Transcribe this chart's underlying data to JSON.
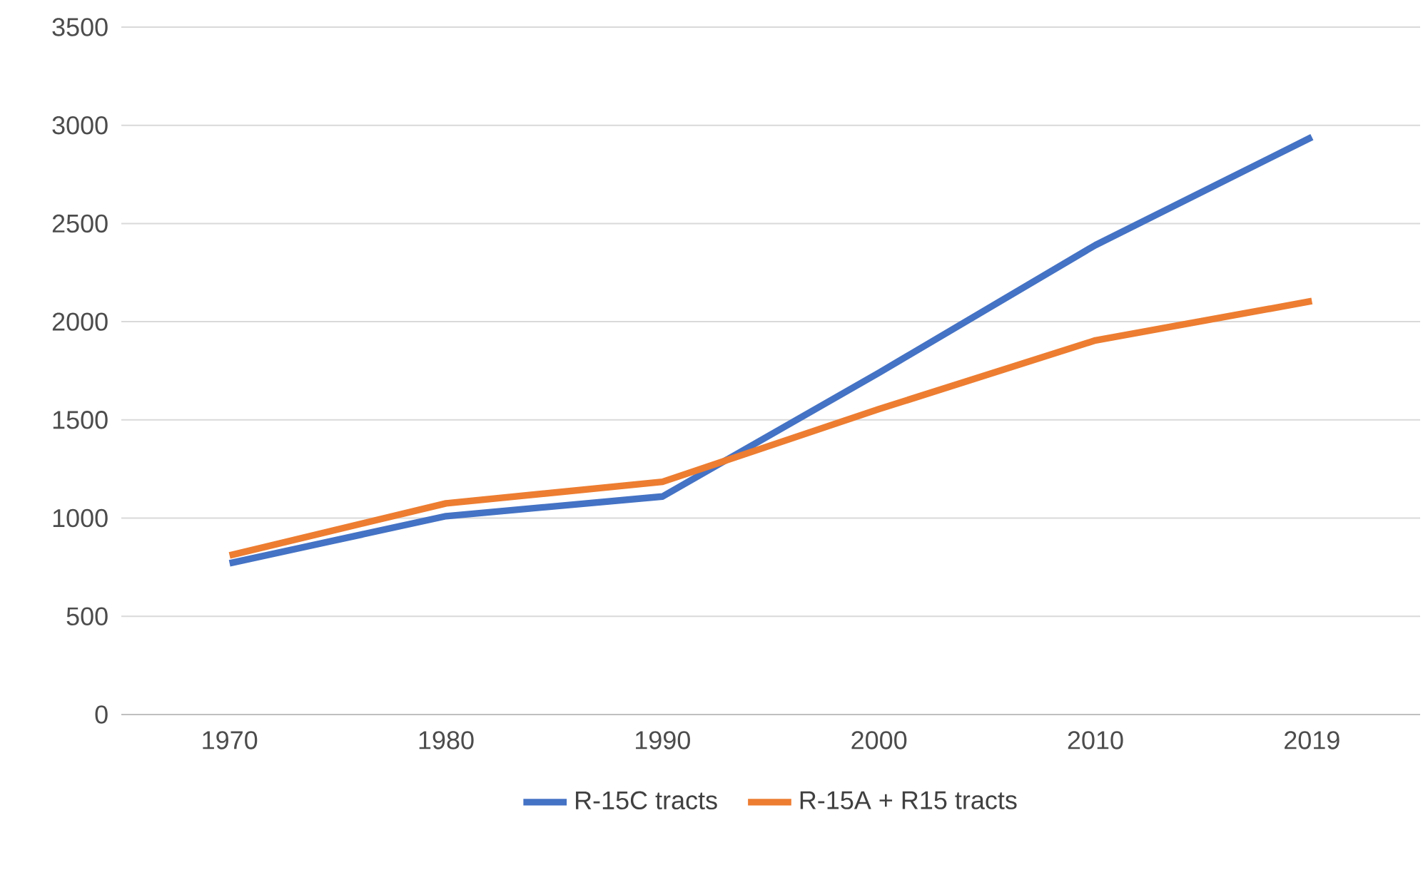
{
  "chart_data": {
    "type": "line",
    "categories": [
      "1970",
      "1980",
      "1990",
      "2000",
      "2010",
      "2019"
    ],
    "series": [
      {
        "name": "R-15C tracts",
        "color": "#4472c4",
        "values": [
          770,
          1010,
          1110,
          1740,
          2390,
          2940
        ]
      },
      {
        "name": "R-15A + R15 tracts",
        "color": "#ed7d31",
        "values": [
          810,
          1075,
          1185,
          1555,
          1905,
          2105
        ]
      }
    ],
    "ylim": [
      0,
      3500
    ],
    "yticks": [
      0,
      500,
      1000,
      1500,
      2000,
      2500,
      3000,
      3500
    ],
    "grid": "y",
    "legend": "bottom",
    "marker": "none",
    "line_style": "solid"
  }
}
